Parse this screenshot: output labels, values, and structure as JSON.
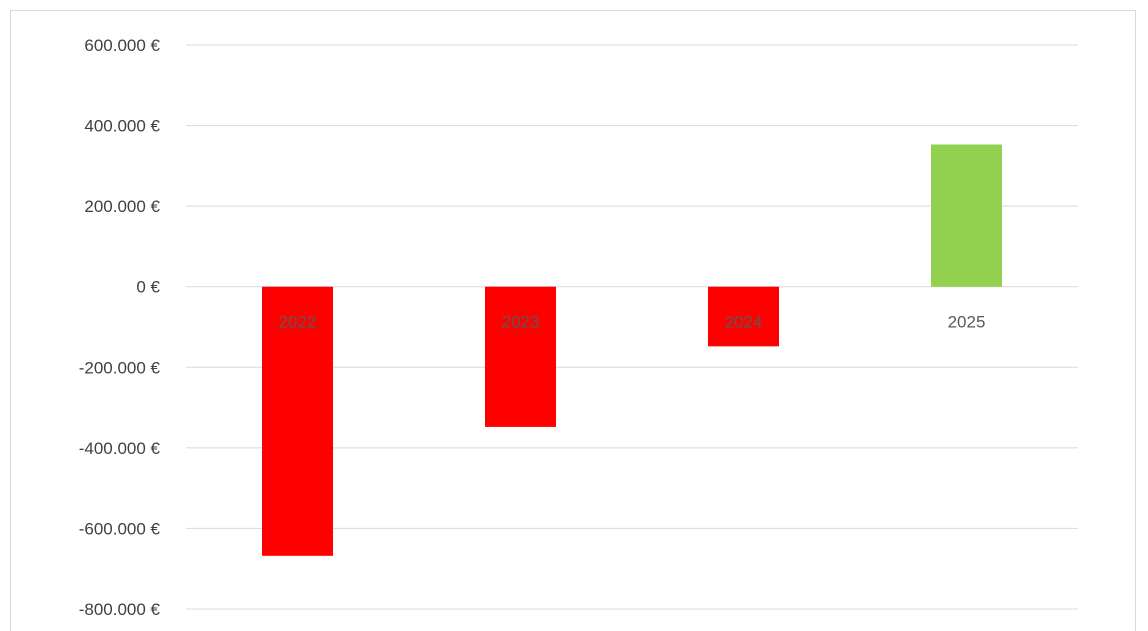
{
  "chart_data": {
    "type": "bar",
    "title": "",
    "xlabel": "",
    "ylabel": "",
    "categories": [
      "2022",
      "2023",
      "2024",
      "2025"
    ],
    "values": [
      -668000,
      -348000,
      -148000,
      353000
    ],
    "colors": [
      "#ff0000",
      "#ff0000",
      "#ff0000",
      "#92d050"
    ],
    "ylim": [
      -800000,
      600000
    ],
    "yticks": [
      600000,
      400000,
      200000,
      0,
      -200000,
      -400000,
      -600000,
      -800000
    ],
    "ytick_labels": [
      "600.000 €",
      "400.000 €",
      "200.000 €",
      "0 €",
      "-200.000 €",
      "-400.000 €",
      "-600.000 €",
      "-800.000 €"
    ],
    "grid": true,
    "legend": "none"
  }
}
